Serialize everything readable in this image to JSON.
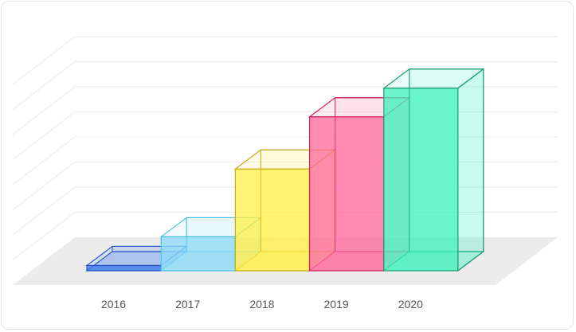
{
  "chart_data": {
    "type": "bar",
    "style": "3d",
    "categories": [
      "2016",
      "2017",
      "2018",
      "2019",
      "2020"
    ],
    "values": [
      2,
      13,
      39,
      59,
      70
    ],
    "ylim": [
      0,
      80
    ],
    "grid": true,
    "title": "",
    "xlabel": "",
    "ylabel": "",
    "colors": [
      {
        "face": "#3a78ee",
        "edge": "#2458c8"
      },
      {
        "face": "#8fdcf7",
        "edge": "#4cbde6"
      },
      {
        "face": "#fff04a",
        "edge": "#c9aa1a"
      },
      {
        "face": "#ff6b9e",
        "edge": "#d0245e"
      },
      {
        "face": "#42f2bd",
        "edge": "#1e9e74"
      }
    ]
  }
}
